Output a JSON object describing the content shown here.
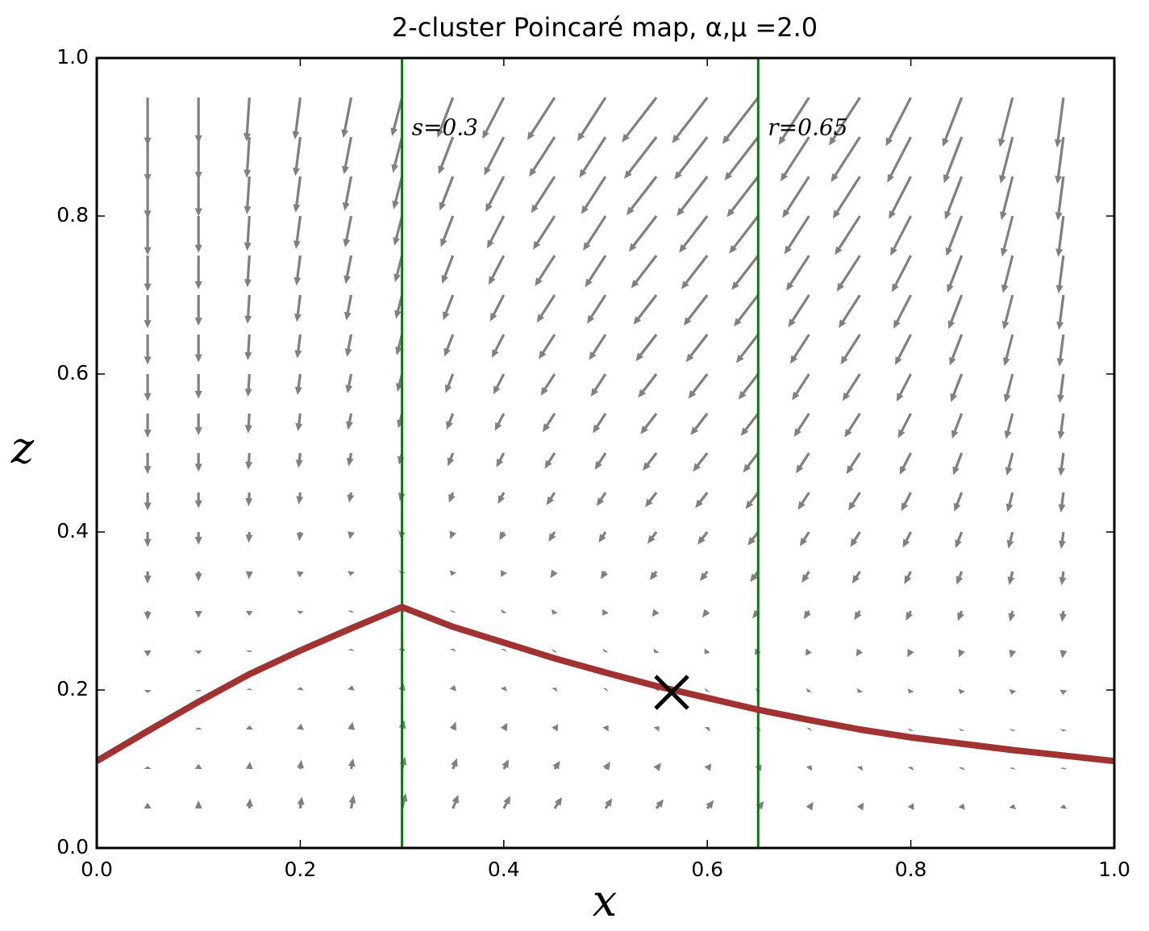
{
  "chart_data": {
    "type": "quiver",
    "title": "2-cluster Poincaré map, α,μ =2.0",
    "xlabel": "x",
    "ylabel": "z",
    "xlim": [
      0,
      1
    ],
    "ylim": [
      0,
      1
    ],
    "xticks": [
      {
        "value": 0,
        "label": "0.0"
      },
      0.2,
      0.4,
      0.6,
      0.8,
      {
        "value": 1,
        "label": "1.0"
      }
    ],
    "yticks": [
      {
        "value": 0,
        "label": "0.0"
      },
      0.2,
      0.4,
      0.6,
      0.8,
      {
        "value": 1,
        "label": "1.0"
      }
    ],
    "quiver": {
      "color": "#808080",
      "x": [
        0.05,
        0.1,
        0.15,
        0.2,
        0.25,
        0.3,
        0.35,
        0.4,
        0.45,
        0.5,
        0.55,
        0.6,
        0.65,
        0.7,
        0.75,
        0.8,
        0.85,
        0.9,
        0.95
      ],
      "z": [
        0.05,
        0.1,
        0.15,
        0.2,
        0.25,
        0.3,
        0.35,
        0.4,
        0.45,
        0.5,
        0.55,
        0.6,
        0.65,
        0.7,
        0.75,
        0.8,
        0.85,
        0.9,
        0.95
      ],
      "u": [
        [
          0,
          0,
          0.0006,
          0.0015,
          0.0026,
          0.0039,
          0.0053,
          0.0064,
          0.0072,
          0.0066,
          0.0071,
          0.0064,
          0.0057,
          0.0043,
          0.0038,
          0.0027,
          0.0019,
          0.0011,
          0.0005
        ],
        [
          0,
          0,
          0.0005,
          0.0011,
          0.002,
          0.0031,
          0.0041,
          0.0049,
          0.0053,
          0.0047,
          0.0048,
          0.0041,
          0.0034,
          0.0024,
          0.0019,
          0.0012,
          0.0007,
          0.0004,
          0.0001
        ],
        [
          0,
          0,
          0.0003,
          0.0008,
          0.0015,
          0.0024,
          0.003,
          0.0034,
          0.0034,
          0.0028,
          0.0025,
          0.0018,
          0.0011,
          0.0005,
          0,
          -0.0003,
          -0.0004,
          -0.0004,
          -0.0003
        ],
        [
          0,
          0,
          0.0001,
          0.0004,
          0.0009,
          0.0016,
          0.0018,
          0.0018,
          0.0015,
          0.0009,
          0.0002,
          -0.0005,
          -0.0011,
          -0.0015,
          -0.0019,
          -0.0018,
          -0.0016,
          -0.0012,
          -0.0006
        ],
        [
          0,
          0,
          -0.0001,
          0,
          0.0003,
          0.0008,
          0.0007,
          0.0003,
          -0.0004,
          -0.0011,
          -0.002,
          -0.0028,
          -0.0034,
          -0.0034,
          -0.0038,
          -0.0034,
          -0.0027,
          -0.0019,
          -0.001
        ],
        [
          0,
          0,
          -0.0003,
          -0.0004,
          -0.0003,
          0.0001,
          -0.0005,
          -0.0012,
          -0.0023,
          -0.003,
          -0.0043,
          -0.005,
          -0.0057,
          -0.0053,
          -0.0057,
          -0.0049,
          -0.0038,
          -0.0027,
          -0.0014
        ],
        [
          0,
          0,
          -0.0005,
          -0.0008,
          -0.0008,
          -0.0007,
          -0.0016,
          -0.0027,
          -0.0042,
          -0.0049,
          -0.0066,
          -0.0073,
          -0.008,
          -0.0072,
          -0.0076,
          -0.0064,
          -0.005,
          -0.0034,
          -0.0018
        ],
        [
          0,
          0,
          -0.0007,
          -0.0011,
          -0.0014,
          -0.0014,
          -0.0027,
          -0.0042,
          -0.0061,
          -0.0068,
          -0.0089,
          -0.0096,
          -0.0103,
          -0.0091,
          -0.0095,
          -0.0079,
          -0.0061,
          -0.0042,
          -0.0022
        ],
        [
          0,
          0,
          -0.0009,
          -0.0015,
          -0.002,
          -0.0022,
          -0.0039,
          -0.0058,
          -0.008,
          -0.0087,
          -0.0112,
          -0.0119,
          -0.0125,
          -0.011,
          -0.0114,
          -0.0094,
          -0.0073,
          -0.005,
          -0.0025
        ],
        [
          0,
          0,
          -0.0011,
          -0.0019,
          -0.0025,
          -0.003,
          -0.005,
          -0.0073,
          -0.0099,
          -0.0106,
          -0.0134,
          -0.0142,
          -0.0148,
          -0.0129,
          -0.0133,
          -0.011,
          -0.0084,
          -0.0057,
          -0.0029
        ],
        [
          0,
          0,
          -0.0013,
          -0.0023,
          -0.0031,
          -0.0037,
          -0.0062,
          -0.0088,
          -0.0118,
          -0.0125,
          -0.0157,
          -0.0164,
          -0.0171,
          -0.0148,
          -0.0152,
          -0.0125,
          -0.0095,
          -0.0065,
          -0.0033
        ],
        [
          0,
          0,
          -0.0014,
          -0.0027,
          -0.0037,
          -0.0045,
          -0.0073,
          -0.0103,
          -0.0137,
          -0.0144,
          -0.018,
          -0.0187,
          -0.0194,
          -0.0167,
          -0.0171,
          -0.014,
          -0.0107,
          -0.0072,
          -0.0037
        ],
        [
          0,
          0,
          -0.0016,
          -0.003,
          -0.0042,
          -0.0052,
          -0.0084,
          -0.0118,
          -0.0156,
          -0.0163,
          -0.0203,
          -0.021,
          -0.0217,
          -0.0186,
          -0.019,
          -0.0155,
          -0.0118,
          -0.008,
          -0.0041
        ],
        [
          0,
          0,
          -0.0018,
          -0.0034,
          -0.0048,
          -0.006,
          -0.0096,
          -0.0134,
          -0.0175,
          -0.0182,
          -0.0226,
          -0.0233,
          -0.0239,
          -0.0205,
          -0.0209,
          -0.017,
          -0.013,
          -0.0088,
          -0.0044
        ],
        [
          0,
          0,
          -0.002,
          -0.0038,
          -0.0054,
          -0.0068,
          -0.0107,
          -0.0149,
          -0.0194,
          -0.0201,
          -0.0248,
          -0.0256,
          -0.0262,
          -0.0224,
          -0.0228,
          -0.0186,
          -0.0141,
          -0.0095,
          -0.0048
        ],
        [
          0,
          0,
          -0.0022,
          -0.0042,
          -0.006,
          -0.0075,
          -0.0119,
          -0.0164,
          -0.0213,
          -0.022,
          -0.0271,
          -0.0278,
          -0.0285,
          -0.0243,
          -0.0247,
          -0.0201,
          -0.0152,
          -0.0103,
          -0.0052
        ],
        [
          0,
          0,
          -0.0024,
          -0.0046,
          -0.0065,
          -0.0083,
          -0.013,
          -0.0179,
          -0.0232,
          -0.0239,
          -0.0294,
          -0.0301,
          -0.0308,
          -0.0262,
          -0.0266,
          -0.0216,
          -0.0164,
          -0.011,
          -0.0056
        ],
        [
          0,
          0,
          -0.0026,
          -0.0049,
          -0.0071,
          -0.009,
          -0.0141,
          -0.0194,
          -0.0251,
          -0.0258,
          -0.0317,
          -0.0324,
          -0.0331,
          -0.0281,
          -0.0285,
          -0.0231,
          -0.0175,
          -0.0118,
          -0.006
        ],
        [
          0,
          0,
          -0.0028,
          -0.0053,
          -0.0077,
          -0.0098,
          -0.0153,
          -0.021,
          -0.027,
          -0.0277,
          -0.034,
          -0.0347,
          -0.0353,
          -0.03,
          -0.0304,
          -0.0246,
          -0.0187,
          -0.0126,
          -0.0063
        ]
      ],
      "v": [
        [
          0.0074,
          0.0103,
          0.0129,
          0.0152,
          0.0173,
          0.0194,
          0.0175,
          0.016,
          0.0144,
          0.0131,
          0.0118,
          0.0106,
          0.0095,
          0.0085,
          0.0076,
          0.0068,
          0.0062,
          0.0056,
          0.0051
        ],
        [
          0.0036,
          0.0065,
          0.0091,
          0.0114,
          0.0135,
          0.0156,
          0.0137,
          0.0122,
          0.0106,
          0.0093,
          0.008,
          0.0068,
          0.0057,
          0.0047,
          0.0038,
          0.003,
          0.0024,
          0.0018,
          0.0013
        ],
        [
          -0.0002,
          0.0027,
          0.0053,
          0.0076,
          0.0097,
          0.0118,
          0.0099,
          0.0084,
          0.0068,
          0.0055,
          0.0042,
          0.003,
          0.0019,
          0.0009,
          0,
          -0.0008,
          -0.0014,
          -0.002,
          -0.0025
        ],
        [
          -0.004,
          -0.0011,
          0.0015,
          0.0038,
          0.0059,
          0.008,
          0.0061,
          0.0046,
          0.003,
          0.0017,
          0.0004,
          -0.0008,
          -0.0019,
          -0.0029,
          -0.0038,
          -0.0046,
          -0.0052,
          -0.0058,
          -0.0063
        ],
        [
          -0.0078,
          -0.0049,
          -0.0023,
          0,
          0.0021,
          0.0042,
          0.0023,
          0.0008,
          -0.0008,
          -0.0021,
          -0.0034,
          -0.0046,
          -0.0057,
          -0.0067,
          -0.0076,
          -0.0084,
          -0.009,
          -0.0096,
          -0.0101
        ],
        [
          -0.0116,
          -0.0087,
          -0.0061,
          -0.0038,
          -0.0017,
          0.0004,
          -0.0015,
          -0.003,
          -0.0046,
          -0.0059,
          -0.0072,
          -0.0084,
          -0.0095,
          -0.0105,
          -0.0114,
          -0.0122,
          -0.0128,
          -0.0134,
          -0.0139
        ],
        [
          -0.0154,
          -0.0125,
          -0.0099,
          -0.0076,
          -0.0055,
          -0.0034,
          -0.0053,
          -0.0068,
          -0.0084,
          -0.0097,
          -0.011,
          -0.0122,
          -0.0133,
          -0.0143,
          -0.0152,
          -0.016,
          -0.0166,
          -0.0172,
          -0.0177
        ],
        [
          -0.0192,
          -0.0163,
          -0.0137,
          -0.0114,
          -0.0093,
          -0.0072,
          -0.0091,
          -0.0106,
          -0.0122,
          -0.0135,
          -0.0148,
          -0.016,
          -0.0171,
          -0.0181,
          -0.019,
          -0.0198,
          -0.0204,
          -0.021,
          -0.0215
        ],
        [
          -0.023,
          -0.0201,
          -0.0175,
          -0.0152,
          -0.0131,
          -0.011,
          -0.0129,
          -0.0144,
          -0.016,
          -0.0173,
          -0.0186,
          -0.0198,
          -0.0209,
          -0.0219,
          -0.0228,
          -0.0236,
          -0.0242,
          -0.0248,
          -0.0253
        ],
        [
          -0.0268,
          -0.0239,
          -0.0213,
          -0.019,
          -0.0169,
          -0.0148,
          -0.0167,
          -0.0182,
          -0.0198,
          -0.0211,
          -0.0224,
          -0.0236,
          -0.0247,
          -0.0257,
          -0.0266,
          -0.0274,
          -0.028,
          -0.0286,
          -0.0291
        ],
        [
          -0.0306,
          -0.0277,
          -0.0251,
          -0.0228,
          -0.0207,
          -0.0186,
          -0.0205,
          -0.022,
          -0.0236,
          -0.0249,
          -0.0262,
          -0.0274,
          -0.0285,
          -0.0295,
          -0.0304,
          -0.0312,
          -0.0318,
          -0.0324,
          -0.0329
        ],
        [
          -0.0344,
          -0.0315,
          -0.0289,
          -0.0266,
          -0.0245,
          -0.0224,
          -0.0243,
          -0.0258,
          -0.0274,
          -0.0287,
          -0.03,
          -0.0312,
          -0.0323,
          -0.0333,
          -0.0342,
          -0.035,
          -0.0356,
          -0.0362,
          -0.0367
        ],
        [
          -0.0382,
          -0.0353,
          -0.0327,
          -0.0304,
          -0.0283,
          -0.0262,
          -0.0281,
          -0.0296,
          -0.0312,
          -0.0325,
          -0.0338,
          -0.035,
          -0.0361,
          -0.0371,
          -0.038,
          -0.0388,
          -0.0394,
          -0.04,
          -0.0405
        ],
        [
          -0.042,
          -0.0391,
          -0.0365,
          -0.0342,
          -0.0321,
          -0.03,
          -0.0319,
          -0.0334,
          -0.035,
          -0.0363,
          -0.0376,
          -0.0388,
          -0.0399,
          -0.0409,
          -0.0418,
          -0.0426,
          -0.0432,
          -0.0438,
          -0.0443
        ],
        [
          -0.0458,
          -0.0429,
          -0.0403,
          -0.038,
          -0.0359,
          -0.0338,
          -0.0357,
          -0.0372,
          -0.0388,
          -0.0401,
          -0.0414,
          -0.0426,
          -0.0437,
          -0.0447,
          -0.0456,
          -0.0464,
          -0.047,
          -0.0476,
          -0.0481
        ],
        [
          -0.0496,
          -0.0467,
          -0.0441,
          -0.0418,
          -0.0397,
          -0.0376,
          -0.0395,
          -0.041,
          -0.0426,
          -0.0439,
          -0.0452,
          -0.0464,
          -0.0475,
          -0.0485,
          -0.0494,
          -0.0502,
          -0.0508,
          -0.0514,
          -0.0519
        ],
        [
          -0.0534,
          -0.0505,
          -0.0479,
          -0.0456,
          -0.0435,
          -0.0414,
          -0.0433,
          -0.0448,
          -0.0464,
          -0.0477,
          -0.049,
          -0.0502,
          -0.0513,
          -0.0523,
          -0.0532,
          -0.054,
          -0.0546,
          -0.0552,
          -0.0557
        ],
        [
          -0.0572,
          -0.0543,
          -0.0517,
          -0.0494,
          -0.0473,
          -0.0452,
          -0.0471,
          -0.0486,
          -0.0502,
          -0.0515,
          -0.0528,
          -0.054,
          -0.0551,
          -0.0561,
          -0.057,
          -0.0578,
          -0.0584,
          -0.059,
          -0.0595
        ],
        [
          -0.061,
          -0.0581,
          -0.0555,
          -0.0532,
          -0.0511,
          -0.049,
          -0.0509,
          -0.0524,
          -0.054,
          -0.0553,
          -0.0566,
          -0.0578,
          -0.0589,
          -0.0599,
          -0.0608,
          -0.0616,
          -0.0622,
          -0.0628,
          -0.0633
        ]
      ]
    },
    "series": [
      {
        "color": "#a03232",
        "x": [
          0,
          0.05,
          0.1,
          0.15,
          0.2,
          0.25,
          0.3,
          0.35,
          0.4,
          0.45,
          0.5,
          0.55,
          0.6,
          0.65,
          0.7,
          0.75,
          0.8,
          0.85,
          0.9,
          0.95,
          1
        ],
        "values": [
          0.11,
          0.148,
          0.185,
          0.22,
          0.25,
          0.278,
          0.305,
          0.28,
          0.26,
          0.24,
          0.222,
          0.205,
          0.19,
          0.175,
          0.162,
          0.15,
          0.14,
          0.132,
          0.124,
          0.117,
          0.11
        ]
      }
    ],
    "vlines": [
      {
        "x": 0.3,
        "label": "s=0.3",
        "color": "#008000"
      },
      {
        "x": 0.65,
        "label": "r=0.65",
        "color": "#008000"
      }
    ],
    "marker": {
      "x": 0.565,
      "y": 0.197,
      "color": "#000000"
    }
  }
}
